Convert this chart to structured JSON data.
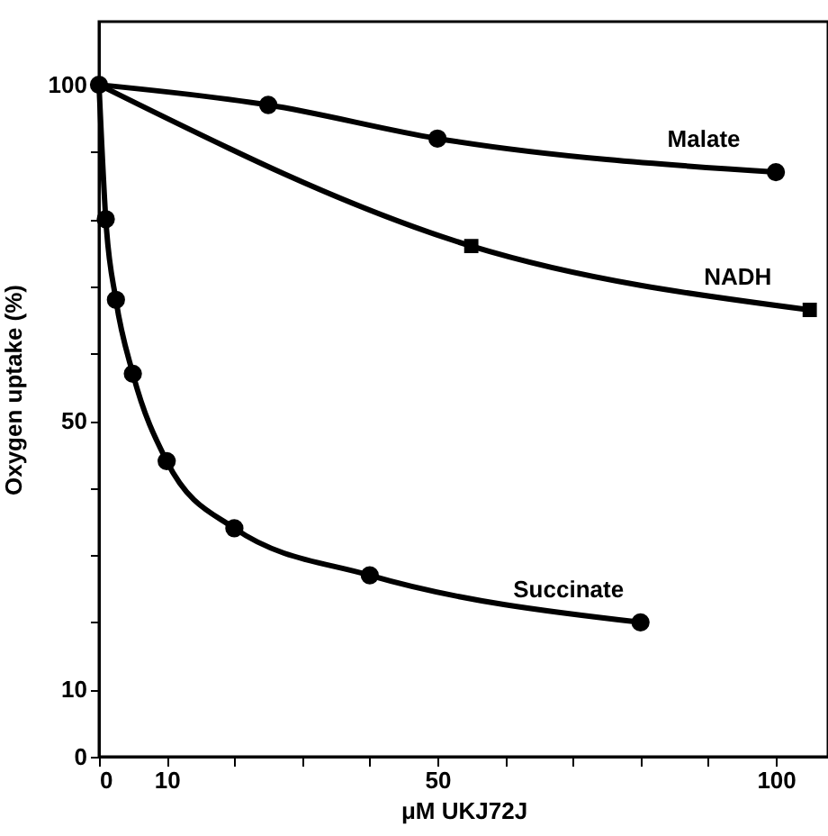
{
  "chart_data": {
    "type": "line",
    "xlabel": "μM UKJ72J",
    "ylabel": "Oxygen uptake (%)",
    "xlim": [
      0,
      107.7
    ],
    "ylim": [
      0,
      109.4
    ],
    "xticks": [
      0,
      10,
      {
        "value": 20,
        "label": null
      },
      {
        "value": 30,
        "label": null
      },
      {
        "value": 40,
        "label": null
      },
      50,
      {
        "value": 60,
        "label": null
      },
      {
        "value": 70,
        "label": null
      },
      {
        "value": 80,
        "label": null
      },
      {
        "value": 90,
        "label": null
      },
      100
    ],
    "yticks": [
      0,
      10,
      {
        "value": 20,
        "label": null
      },
      {
        "value": 30,
        "label": null
      },
      {
        "value": 40,
        "label": null
      },
      50,
      {
        "value": 60,
        "label": null
      },
      {
        "value": 70,
        "label": null
      },
      {
        "value": 80,
        "label": null
      },
      {
        "value": 90,
        "label": null
      },
      100
    ],
    "grid": false,
    "series": [
      {
        "name": "Succinate",
        "color": "#000000",
        "marker": "circle",
        "x": [
          0,
          1,
          2.5,
          5,
          10,
          20,
          40,
          80
        ],
        "values": [
          100,
          80,
          68,
          57,
          44,
          34,
          27,
          20
        ]
      },
      {
        "name": "NADH",
        "color": "#000000",
        "marker": "square",
        "x": [
          0,
          55,
          105
        ],
        "values": [
          100,
          76,
          66.5
        ]
      },
      {
        "name": "Malate",
        "color": "#000000",
        "marker": "circle",
        "x": [
          0,
          25,
          50,
          100
        ],
        "values": [
          100,
          97,
          92,
          87
        ]
      }
    ]
  }
}
